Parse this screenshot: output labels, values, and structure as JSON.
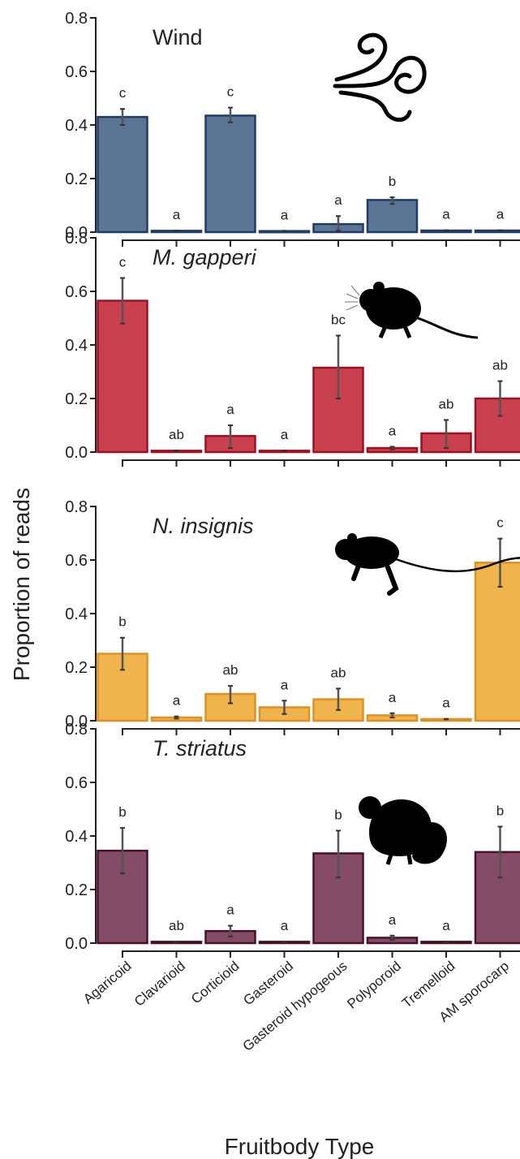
{
  "chart_data": {
    "type": "bar",
    "ylabel": "Proportion of reads",
    "xlabel": "Fruitbody Type",
    "ylim": [
      0,
      0.8
    ],
    "yticks": [
      "0.0",
      "0.2",
      "0.4",
      "0.6",
      "0.8"
    ],
    "categories": [
      "Agaricoid",
      "Clavarioid",
      "Corticioid",
      "Gasteroid",
      "Gasteroid hypogeous",
      "Polyporoid",
      "Tremelloid",
      "AM sporocarp"
    ],
    "panels": [
      {
        "title": "Wind",
        "italic": false,
        "icon": "wind-icon",
        "color": "#5b7594",
        "edge": "#1e3d6b",
        "values": [
          0.43,
          0.005,
          0.435,
          0.004,
          0.03,
          0.12,
          0.006,
          0.006
        ],
        "err_low": [
          0.4,
          0.004,
          0.41,
          0.003,
          0.005,
          0.105,
          0.005,
          0.005
        ],
        "err_high": [
          0.46,
          0.006,
          0.465,
          0.005,
          0.06,
          0.13,
          0.007,
          0.007
        ],
        "letters": [
          "c",
          "a",
          "c",
          "a",
          "a",
          "b",
          "a",
          "a"
        ]
      },
      {
        "title": "M. gapperi",
        "italic": true,
        "icon": "vole-icon",
        "color": "#c9404f",
        "edge": "#a0101f",
        "values": [
          0.565,
          0.005,
          0.06,
          0.005,
          0.315,
          0.015,
          0.07,
          0.2
        ],
        "err_low": [
          0.48,
          0.004,
          0.015,
          0.004,
          0.2,
          0.01,
          0.015,
          0.135
        ],
        "err_high": [
          0.65,
          0.006,
          0.1,
          0.006,
          0.435,
          0.02,
          0.12,
          0.265
        ],
        "letters": [
          "c",
          "ab",
          "a",
          "a",
          "bc",
          "a",
          "ab",
          "ab"
        ]
      },
      {
        "title": "N. insignis",
        "italic": true,
        "icon": "jumping-mouse-icon",
        "color": "#f0b44c",
        "edge": "#e09020",
        "values": [
          0.25,
          0.012,
          0.1,
          0.05,
          0.08,
          0.02,
          0.006,
          0.59
        ],
        "err_low": [
          0.19,
          0.008,
          0.065,
          0.025,
          0.04,
          0.012,
          0.005,
          0.5
        ],
        "err_high": [
          0.31,
          0.016,
          0.13,
          0.075,
          0.12,
          0.028,
          0.007,
          0.68
        ],
        "letters": [
          "b",
          "a",
          "ab",
          "a",
          "ab",
          "a",
          "a",
          "c"
        ]
      },
      {
        "title": "T. striatus",
        "italic": true,
        "icon": "chipmunk-icon",
        "color": "#844c66",
        "edge": "#4a1028",
        "values": [
          0.345,
          0.005,
          0.045,
          0.005,
          0.335,
          0.02,
          0.005,
          0.34
        ],
        "err_low": [
          0.26,
          0.004,
          0.025,
          0.004,
          0.245,
          0.012,
          0.004,
          0.245
        ],
        "err_high": [
          0.43,
          0.006,
          0.065,
          0.006,
          0.42,
          0.028,
          0.006,
          0.435
        ],
        "letters": [
          "b",
          "ab",
          "a",
          "a",
          "b",
          "a",
          "a",
          "b"
        ]
      }
    ]
  }
}
